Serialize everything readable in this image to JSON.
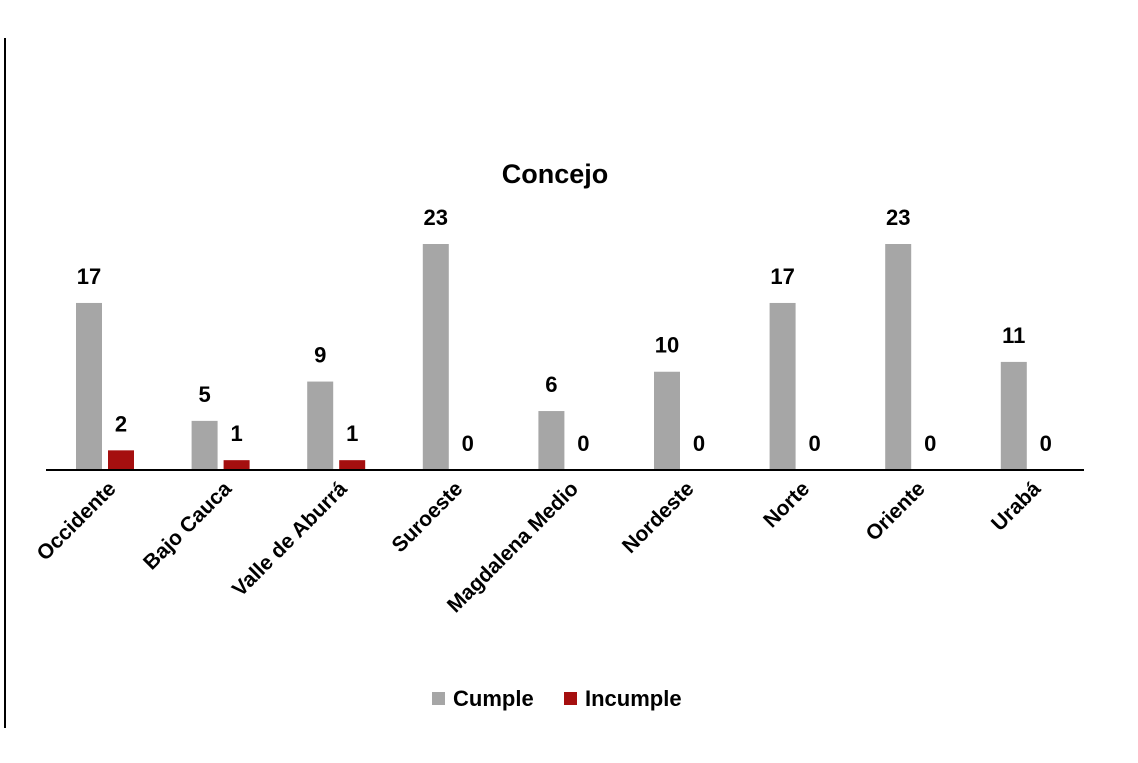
{
  "chart_data": {
    "type": "bar",
    "title": "Concejo",
    "xlabel": "",
    "ylabel": "",
    "categories": [
      "Occidente",
      "Bajo Cauca",
      "Valle de Aburrá",
      "Suroeste",
      "Magdalena Medio",
      "Nordeste",
      "Norte",
      "Oriente",
      "Urabá"
    ],
    "series": [
      {
        "name": "Cumple",
        "color": "#a6a6a6",
        "values": [
          17,
          5,
          9,
          23,
          6,
          10,
          17,
          23,
          11
        ]
      },
      {
        "name": "Incumple",
        "color": "#a50f0f",
        "values": [
          2,
          1,
          1,
          0,
          0,
          0,
          0,
          0,
          0
        ]
      }
    ],
    "ylim": [
      0,
      23
    ],
    "grid": false,
    "legend_position": "bottom",
    "data_labels": true
  }
}
